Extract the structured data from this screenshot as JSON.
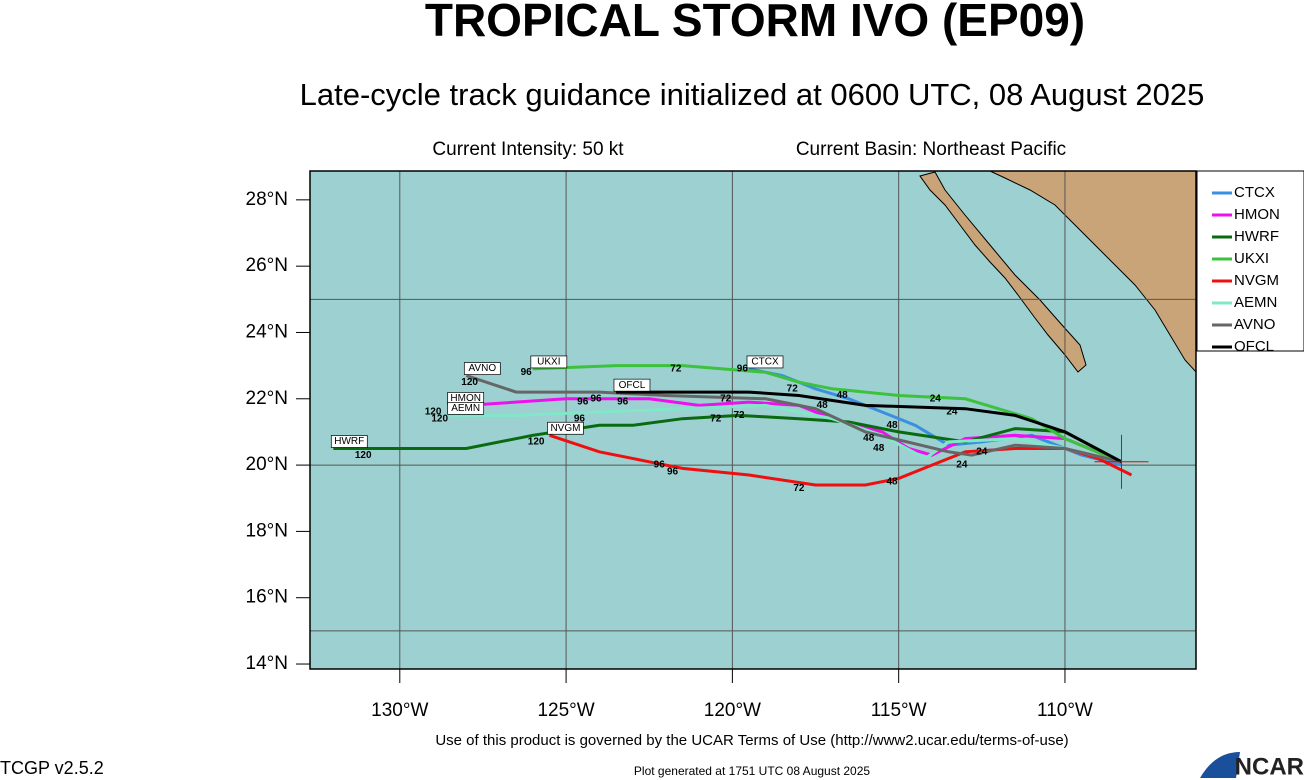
{
  "title": "TROPICAL STORM IVO (EP09)",
  "subtitle": "Late-cycle track guidance initialized at 0600 UTC, 08 August 2025",
  "intensity": "Current Intensity: 50 kt",
  "basin": "Current Basin: Northeast Pacific",
  "footer_terms": "Use of this product is governed by the UCAR Terms of Use (http://www2.ucar.edu/terms-of-use)",
  "footer_version": "TCGP v2.5.2",
  "footer_generated": "Plot generated at 1751 UTC   08 August 2025",
  "logo": "NCAR",
  "map": {
    "lon_lim": [
      -132.7,
      -106.06
    ],
    "lat_lim": [
      13.85,
      28.87
    ],
    "lat_ticks": [
      {
        "value": 28,
        "label": "28°N"
      },
      {
        "value": 26,
        "label": "26°N"
      },
      {
        "value": 24,
        "label": "24°N"
      },
      {
        "value": 22,
        "label": "22°N"
      },
      {
        "value": 20,
        "label": "20°N"
      },
      {
        "value": 18,
        "label": "18°N"
      },
      {
        "value": 16,
        "label": "16°N"
      },
      {
        "value": 14,
        "label": "14°N"
      }
    ],
    "lon_ticks": [
      {
        "value": -130,
        "label": "130°W"
      },
      {
        "value": -125,
        "label": "125°W"
      },
      {
        "value": -120,
        "label": "120°W"
      },
      {
        "value": -115,
        "label": "115°W"
      },
      {
        "value": -110,
        "label": "110°W"
      }
    ],
    "lat_grid": [
      25,
      20,
      15
    ],
    "lon_grid": [
      -130,
      -125,
      -120,
      -115,
      -110
    ],
    "current_position": {
      "lon": -108.3,
      "lat": 20.1
    },
    "tracks": [
      {
        "name": "CTCX",
        "color": "#3a8fe0",
        "lon": [
          -108.3,
          -109.5,
          -111,
          -112.5,
          -113.5,
          -114.5,
          -115.5,
          -116.5,
          -117.5,
          -118.5,
          -119.5
        ],
        "lat": [
          20.0,
          20.3,
          20.9,
          20.7,
          20.6,
          21.2,
          21.6,
          22.0,
          22.3,
          22.7,
          22.9
        ]
      },
      {
        "name": "HMON",
        "color": "#ee10ee",
        "lon": [
          -108.3,
          -110,
          -111.5,
          -113,
          -114,
          -114.7,
          -115.5,
          -117,
          -118,
          -119.5,
          -121,
          -122.5,
          -125,
          -128,
          -128.5
        ],
        "lat": [
          20.1,
          20.8,
          20.9,
          20.8,
          20.3,
          20.5,
          21.0,
          21.4,
          21.8,
          21.9,
          21.8,
          22.0,
          22.0,
          21.8,
          21.8
        ]
      },
      {
        "name": "HWRF",
        "color": "#0a6a10",
        "lon": [
          -108.3,
          -110,
          -111.5,
          -113,
          -115,
          -116.5,
          -118,
          -119.8,
          -121.5,
          -123,
          -124,
          -126,
          -128,
          -131,
          -132
        ],
        "lat": [
          20.1,
          21.0,
          21.1,
          20.7,
          21.0,
          21.3,
          21.4,
          21.5,
          21.4,
          21.2,
          21.2,
          20.9,
          20.5,
          20.5,
          20.5
        ]
      },
      {
        "name": "UKXI",
        "color": "#3cc23c",
        "lon": [
          -108.3,
          -110,
          -111,
          -113,
          -115,
          -117,
          -118,
          -119,
          -121.5,
          -123.5,
          -126
        ],
        "lat": [
          20.1,
          20.8,
          21.4,
          22.0,
          22.1,
          22.3,
          22.5,
          22.8,
          23.0,
          23.0,
          22.9
        ]
      },
      {
        "name": "NVGM",
        "color": "#ee1010",
        "lon": [
          -108,
          -109,
          -110,
          -111.5,
          -113,
          -114,
          -115,
          -116,
          -117.5,
          -119.5,
          -121.5,
          -122.5,
          -124,
          -125.5
        ],
        "lat": [
          19.7,
          20.2,
          20.5,
          20.5,
          20.4,
          20.0,
          19.6,
          19.4,
          19.4,
          19.7,
          19.9,
          20.1,
          20.4,
          20.9
        ]
      },
      {
        "name": "AEMN",
        "color": "#80e8c8",
        "lon": [
          -108.3,
          -110,
          -111.5,
          -113.5,
          -114.2,
          -115.5,
          -117,
          -119,
          -121.5,
          -124,
          -126.5,
          -128.5
        ],
        "lat": [
          20.1,
          20.5,
          20.8,
          20.7,
          20.2,
          20.9,
          21.4,
          21.8,
          21.7,
          21.6,
          21.5,
          21.5
        ]
      },
      {
        "name": "AVNO",
        "color": "#666666",
        "lon": [
          -108.3,
          -110,
          -111.5,
          -112.8,
          -113.5,
          -116,
          -117.5,
          -119,
          -122,
          -124,
          -126.5,
          -128
        ],
        "lat": [
          20.1,
          20.5,
          20.6,
          20.3,
          20.4,
          21.0,
          21.7,
          22.0,
          22.1,
          22.2,
          22.2,
          22.7
        ]
      },
      {
        "name": "OFCL",
        "color": "#000000",
        "lon": [
          -108.3,
          -110,
          -111.5,
          -113,
          -116,
          -118,
          -119.5,
          -121.5,
          -123.5
        ],
        "lat": [
          20.1,
          21.0,
          21.5,
          21.7,
          21.8,
          22.1,
          22.2,
          22.2,
          22.2
        ]
      }
    ],
    "hour_labels": [
      {
        "text": "24",
        "lon": -113.4,
        "lat": 21.6
      },
      {
        "text": "24",
        "lon": -113.9,
        "lat": 22.0
      },
      {
        "text": "24",
        "lon": -113.1,
        "lat": 20.0
      },
      {
        "text": "24",
        "lon": -112.5,
        "lat": 20.4
      },
      {
        "text": "48",
        "lon": -117.3,
        "lat": 21.8
      },
      {
        "text": "48",
        "lon": -116.7,
        "lat": 22.1
      },
      {
        "text": "48",
        "lon": -115.2,
        "lat": 21.2
      },
      {
        "text": "48",
        "lon": -115.9,
        "lat": 20.8
      },
      {
        "text": "48",
        "lon": -115.6,
        "lat": 20.5
      },
      {
        "text": "48",
        "lon": -115.2,
        "lat": 19.5
      },
      {
        "text": "72",
        "lon": -118.2,
        "lat": 22.3
      },
      {
        "text": "72",
        "lon": -120.2,
        "lat": 22.0
      },
      {
        "text": "72",
        "lon": -119.8,
        "lat": 21.5
      },
      {
        "text": "72",
        "lon": -120.5,
        "lat": 21.4
      },
      {
        "text": "72",
        "lon": -121.7,
        "lat": 22.9
      },
      {
        "text": "72",
        "lon": -118,
        "lat": 19.3
      },
      {
        "text": "96",
        "lon": -122.2,
        "lat": 20.0
      },
      {
        "text": "96",
        "lon": -124.6,
        "lat": 21.4
      },
      {
        "text": "96",
        "lon": -124.5,
        "lat": 21.9
      },
      {
        "text": "96",
        "lon": -123.3,
        "lat": 21.9
      },
      {
        "text": "96",
        "lon": -124.1,
        "lat": 22.0
      },
      {
        "text": "96",
        "lon": -119.7,
        "lat": 22.9
      },
      {
        "text": "96",
        "lon": -121.8,
        "lat": 19.8
      },
      {
        "text": "96",
        "lon": -126.2,
        "lat": 22.8
      },
      {
        "text": "120",
        "lon": -131.1,
        "lat": 20.3
      },
      {
        "text": "120",
        "lon": -125.9,
        "lat": 20.7
      },
      {
        "text": "120",
        "lon": -127.9,
        "lat": 22.5
      },
      {
        "text": "120",
        "lon": -129,
        "lat": 21.6
      },
      {
        "text": "120",
        "lon": -128.8,
        "lat": 21.4
      }
    ]
  }
}
